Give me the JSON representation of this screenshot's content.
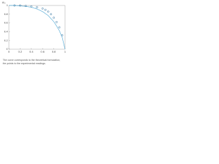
{
  "chart_data": {
    "type": "line",
    "ylabel": "I/I₀",
    "caption": [
      "The curve corresponds to the theoretical formulation,",
      "the points to the experimental readings."
    ],
    "xlim": [
      0,
      1
    ],
    "xticks": [
      0,
      0.2,
      0.4,
      0.6,
      0.8,
      1
    ],
    "ylim": [
      0,
      1
    ],
    "yticks": [
      0,
      0.2,
      0.4,
      0.6,
      0.8,
      1
    ],
    "series": [
      {
        "type": "line",
        "color": "#5aaed8",
        "x": [
          0,
          0.1,
          0.2,
          0.3,
          0.4,
          0.5,
          0.6,
          0.7,
          0.8,
          0.85,
          0.9,
          0.95,
          1
        ],
        "values": [
          1,
          1,
          0.99,
          0.98,
          0.96,
          0.92,
          0.86,
          0.77,
          0.63,
          0.53,
          0.42,
          0.27,
          0
        ]
      },
      {
        "type": "scatter",
        "color": "#2c6f9e",
        "x": [
          0.1,
          0.2,
          0.3,
          0.4,
          0.5,
          0.6,
          0.65,
          0.7,
          0.75,
          0.8,
          0.85,
          0.9,
          0.95
        ],
        "values": [
          1,
          1,
          0.99,
          0.98,
          0.96,
          0.93,
          0.9,
          0.86,
          0.8,
          0.72,
          0.62,
          0.5,
          0.32
        ]
      }
    ]
  }
}
